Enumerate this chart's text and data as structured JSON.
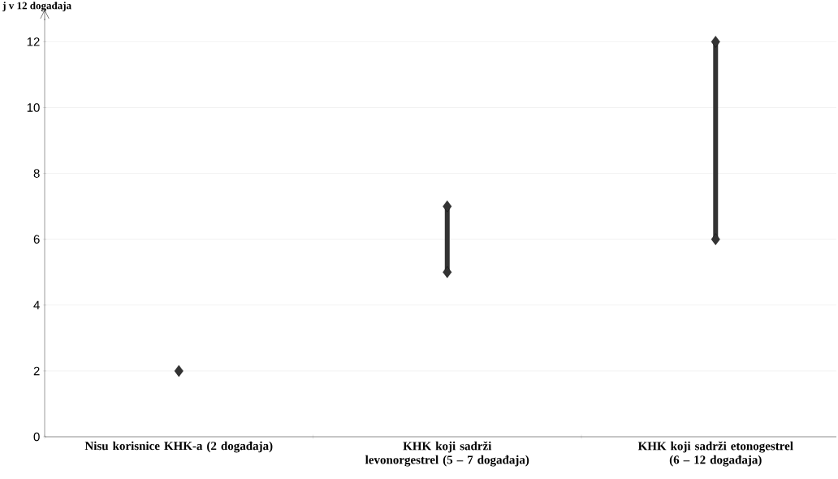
{
  "chart_data": {
    "type": "bar",
    "ylabel": "j v 12 događaja",
    "categories": [
      "Nisu korisnice KHK-a (2 događaja)",
      "KHK koji sadrži levonorgestrel (5 – 7 događaja)",
      "KHK koji sadrži etonogestrel (6 – 12 događaja)"
    ],
    "series": [
      {
        "color": "#333333",
        "base": [
          null,
          5,
          6
        ],
        "values": [
          null,
          2,
          6
        ]
      },
      {
        "type": "scatter",
        "color": "#333333",
        "marker": "diamond",
        "x": [
          "Nisu korisnice KHK-a (2 događaja)",
          "KHK koji sadrži levonorgestrel (5 – 7 događaja)",
          "KHK koji sadrži levonorgestrel (5 – 7 događaja)",
          "KHK koji sadrži etonogestrel (6 – 12 događaja)",
          "KHK koji sadrži etonogestrel (6 – 12 događaja)"
        ],
        "values": [
          2,
          5,
          7,
          6,
          12
        ]
      }
    ],
    "ylim": [
      0,
      12.7
    ],
    "yticks": [
      0,
      2,
      4,
      6,
      8,
      10,
      12
    ],
    "grid": "y"
  }
}
